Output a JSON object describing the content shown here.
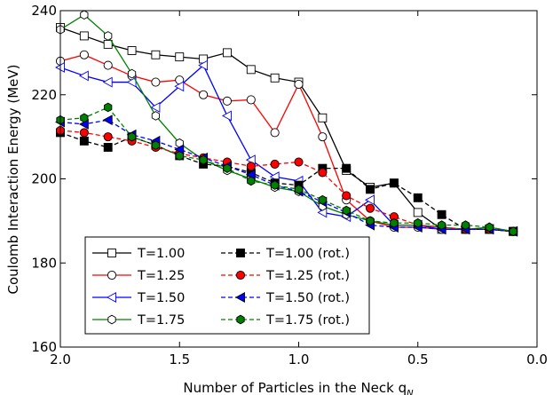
{
  "chart_data": {
    "type": "line",
    "xlabel": "Number of Particles in the Neck q",
    "xlabel_sub": "N",
    "ylabel": "Coulomb Interaction Energy (MeV)",
    "xlim": [
      2.0,
      0.0
    ],
    "ylim": [
      160,
      240
    ],
    "x_reversed": true,
    "xticks": [
      2.0,
      1.5,
      1.0,
      0.5,
      0.0
    ],
    "xtick_labels": [
      "2.0",
      "1.5",
      "1.0",
      "0.5",
      "0.0"
    ],
    "yticks": [
      160,
      180,
      200,
      220,
      240
    ],
    "ytick_labels": [
      "160",
      "180",
      "200",
      "220",
      "240"
    ],
    "grid": false,
    "legend_position": "lower-left",
    "series": [
      {
        "name": "T=1.00",
        "color": "#000000",
        "marker": "square",
        "filled": false,
        "dashed": false,
        "x": [
          2.0,
          1.9,
          1.8,
          1.7,
          1.6,
          1.5,
          1.4,
          1.3,
          1.2,
          1.1,
          1.0,
          0.9,
          0.8,
          0.7,
          0.6,
          0.5,
          0.4,
          0.3,
          0.2,
          0.1
        ],
        "y": [
          236,
          234,
          232,
          230.5,
          229.5,
          229,
          228.5,
          230,
          226,
          224,
          223,
          214.5,
          202,
          198,
          199,
          192,
          188,
          188,
          188,
          187.5
        ]
      },
      {
        "name": "T=1.25",
        "color": "#ff0000",
        "marker": "circle",
        "filled": false,
        "dashed": false,
        "x": [
          2.0,
          1.9,
          1.8,
          1.7,
          1.6,
          1.5,
          1.4,
          1.3,
          1.2,
          1.1,
          1.0,
          0.9,
          0.8,
          0.7,
          0.6,
          0.5,
          0.4,
          0.3,
          0.2,
          0.1
        ],
        "y": [
          228,
          229.5,
          227,
          224.5,
          223,
          223.5,
          220,
          218.5,
          218.8,
          211,
          222.5,
          210,
          195,
          190,
          188.5,
          188.5,
          188,
          188,
          188,
          187.5
        ]
      },
      {
        "name": "T=1.50",
        "color": "#0000ff",
        "marker": "triangle-left",
        "filled": false,
        "dashed": false,
        "x": [
          2.0,
          1.9,
          1.8,
          1.7,
          1.6,
          1.5,
          1.4,
          1.3,
          1.2,
          1.1,
          1.0,
          0.9,
          0.8,
          0.7,
          0.6,
          0.5,
          0.4,
          0.3,
          0.2,
          0.1
        ],
        "y": [
          226.5,
          224.5,
          223,
          223,
          217,
          222,
          227,
          215,
          204.5,
          200.5,
          199.5,
          192,
          191,
          195,
          189,
          189,
          188,
          188,
          188,
          187.5
        ]
      },
      {
        "name": "T=1.75",
        "color": "#008000",
        "marker": "hexagon",
        "filled": false,
        "dashed": false,
        "x": [
          2.0,
          1.9,
          1.8,
          1.7,
          1.6,
          1.5,
          1.4,
          1.3,
          1.2,
          1.1,
          1.0,
          0.9,
          0.8,
          0.7,
          0.6,
          0.5,
          0.4,
          0.3,
          0.2,
          0.1
        ],
        "y": [
          235.5,
          239,
          234,
          225,
          215,
          208.5,
          204.5,
          202,
          200,
          198,
          197,
          193.5,
          191.5,
          190,
          189,
          189,
          188.5,
          188,
          188.5,
          187.5
        ]
      },
      {
        "name": "T=1.00 (rot.)",
        "color": "#000000",
        "marker": "square",
        "filled": true,
        "dashed": true,
        "x": [
          2.0,
          1.9,
          1.8,
          1.7,
          1.6,
          1.5,
          1.4,
          1.3,
          1.2,
          1.1,
          1.0,
          0.9,
          0.8,
          0.7,
          0.6,
          0.5,
          0.4,
          0.3,
          0.2,
          0.1
        ],
        "y": [
          211,
          209,
          207.5,
          210,
          208,
          205.5,
          203.5,
          203,
          201.5,
          199,
          198.5,
          202.5,
          202.5,
          197.5,
          199,
          195.5,
          191.5,
          188,
          188,
          187.5
        ]
      },
      {
        "name": "T=1.25 (rot.)",
        "color": "#ff0000",
        "marker": "circle",
        "filled": true,
        "dashed": true,
        "x": [
          2.0,
          1.9,
          1.8,
          1.7,
          1.6,
          1.5,
          1.4,
          1.3,
          1.2,
          1.1,
          1.0,
          0.9,
          0.8,
          0.7,
          0.6,
          0.5,
          0.4,
          0.3,
          0.2,
          0.1
        ],
        "y": [
          211.5,
          211,
          210,
          209,
          207.5,
          206,
          205,
          204,
          203,
          203.5,
          204,
          201.5,
          196,
          193,
          191,
          189,
          188.5,
          188,
          188,
          187.5
        ]
      },
      {
        "name": "T=1.50 (rot.)",
        "color": "#0000ff",
        "marker": "triangle-left",
        "filled": true,
        "dashed": true,
        "x": [
          2.0,
          1.9,
          1.8,
          1.7,
          1.6,
          1.5,
          1.4,
          1.3,
          1.2,
          1.1,
          1.0,
          0.9,
          0.8,
          0.7,
          0.6,
          0.5,
          0.4,
          0.3,
          0.2,
          0.1
        ],
        "y": [
          213.5,
          213,
          214,
          210.5,
          209,
          207,
          205,
          203,
          201,
          198.5,
          197,
          194.5,
          192,
          189,
          188.5,
          188.5,
          188,
          188,
          188,
          187.5
        ]
      },
      {
        "name": "T=1.75 (rot.)",
        "color": "#008000",
        "marker": "hexagon",
        "filled": true,
        "dashed": true,
        "x": [
          2.0,
          1.9,
          1.8,
          1.7,
          1.6,
          1.5,
          1.4,
          1.3,
          1.2,
          1.1,
          1.0,
          0.9,
          0.8,
          0.7,
          0.6,
          0.5,
          0.4,
          0.3,
          0.2,
          0.1
        ],
        "y": [
          214,
          214.5,
          217,
          210,
          208,
          205.5,
          204.5,
          202.5,
          199.5,
          198.5,
          197.5,
          195,
          192.5,
          190,
          189.5,
          189.5,
          189,
          189,
          188.5,
          187.5
        ]
      }
    ]
  }
}
